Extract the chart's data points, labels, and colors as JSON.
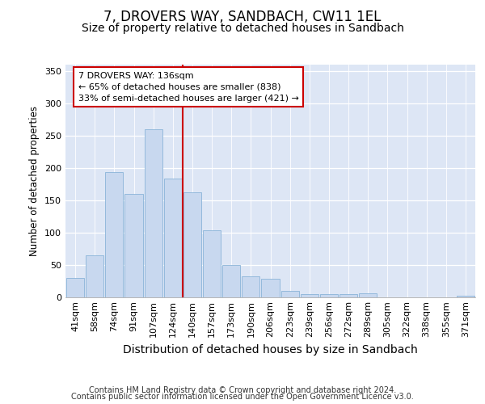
{
  "title": "7, DROVERS WAY, SANDBACH, CW11 1EL",
  "subtitle": "Size of property relative to detached houses in Sandbach",
  "xlabel": "Distribution of detached houses by size in Sandbach",
  "ylabel": "Number of detached properties",
  "categories": [
    "41sqm",
    "58sqm",
    "74sqm",
    "91sqm",
    "107sqm",
    "124sqm",
    "140sqm",
    "157sqm",
    "173sqm",
    "190sqm",
    "206sqm",
    "223sqm",
    "239sqm",
    "256sqm",
    "272sqm",
    "289sqm",
    "305sqm",
    "322sqm",
    "338sqm",
    "355sqm",
    "371sqm"
  ],
  "values": [
    30,
    64,
    194,
    160,
    260,
    184,
    162,
    103,
    50,
    32,
    28,
    10,
    4,
    5,
    5,
    6,
    0,
    0,
    0,
    0,
    2
  ],
  "bar_color": "#c8d8ef",
  "bar_edge_color": "#8ab4d8",
  "vline_color": "#cc0000",
  "vline_x": 6.0,
  "annotation_line1": "7 DROVERS WAY: 136sqm",
  "annotation_line2": "← 65% of detached houses are smaller (838)",
  "annotation_line3": "33% of semi-detached houses are larger (421) →",
  "annotation_box_fc": "#ffffff",
  "annotation_box_ec": "#cc0000",
  "ylim": [
    0,
    360
  ],
  "yticks": [
    0,
    50,
    100,
    150,
    200,
    250,
    300,
    350
  ],
  "bg_color": "#dde6f5",
  "grid_color": "#ffffff",
  "footer_line1": "Contains HM Land Registry data © Crown copyright and database right 2024.",
  "footer_line2": "Contains public sector information licensed under the Open Government Licence v3.0.",
  "title_fontsize": 12,
  "subtitle_fontsize": 10,
  "xlabel_fontsize": 10,
  "ylabel_fontsize": 8.5,
  "tick_fontsize": 8,
  "annot_fontsize": 8,
  "footer_fontsize": 7
}
